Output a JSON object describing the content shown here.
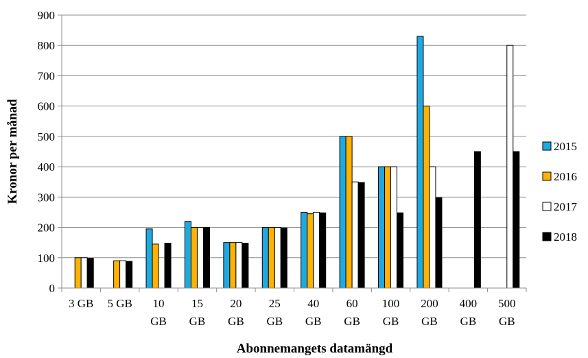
{
  "chart_data": {
    "type": "bar",
    "title": "",
    "xlabel": "Abonnemangets datamängd",
    "ylabel": "Kronor per månad",
    "ylim": [
      0,
      900
    ],
    "yticks": [
      0,
      100,
      200,
      300,
      400,
      500,
      600,
      700,
      800,
      900
    ],
    "grid": true,
    "legend_position": "right",
    "categories": [
      [
        "3 GB"
      ],
      [
        "5 GB"
      ],
      [
        "10",
        "GB"
      ],
      [
        "15",
        "GB"
      ],
      [
        "20",
        "GB"
      ],
      [
        "25",
        "GB"
      ],
      [
        "40",
        "GB"
      ],
      [
        "60",
        "GB"
      ],
      [
        "100",
        "GB"
      ],
      [
        "200",
        "GB"
      ],
      [
        "400",
        "GB"
      ],
      [
        "500",
        "GB"
      ]
    ],
    "series": [
      {
        "name": "2015",
        "color": "#1FA9E1",
        "values": [
          null,
          null,
          195,
          220,
          150,
          200,
          250,
          500,
          400,
          830,
          null,
          null
        ]
      },
      {
        "name": "2016",
        "color": "#FFB200",
        "values": [
          100,
          90,
          145,
          200,
          150,
          200,
          245,
          500,
          400,
          600,
          null,
          null
        ]
      },
      {
        "name": "2017",
        "color": "#FFFFFF",
        "values": [
          100,
          90,
          null,
          200,
          150,
          200,
          250,
          350,
          400,
          400,
          null,
          800
        ]
      },
      {
        "name": "2018",
        "color": "#000000",
        "values": [
          98,
          88,
          148,
          200,
          148,
          198,
          248,
          348,
          248,
          298,
          450,
          450
        ]
      }
    ]
  }
}
